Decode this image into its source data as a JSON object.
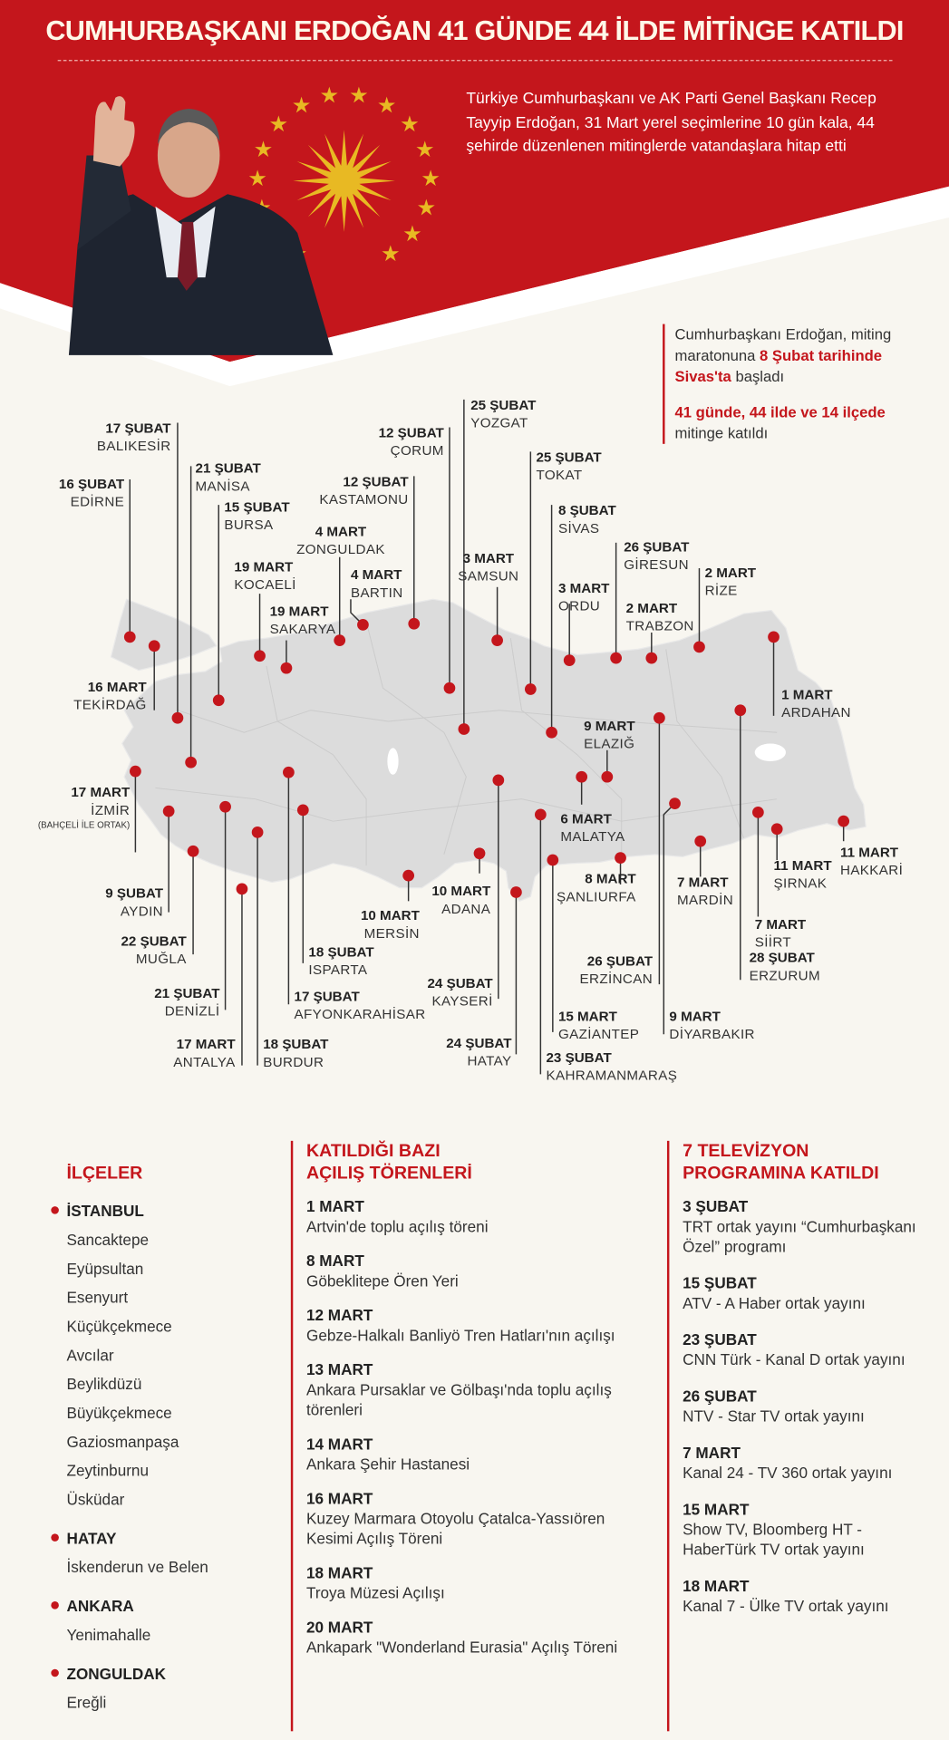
{
  "header": {
    "title": "CUMHURBAŞKANI ERDOĞAN 41 GÜNDE 44 İLDE MİTİNGE KATILDI",
    "intro": "Türkiye Cumhurbaşkanı ve AK Parti Genel Başkanı Recep Tayyip Erdoğan, 31 Mart yerel seçimlerine 10 gün kala, 44 şehirde düzenlenen mitinglerde vatandaşlara hitap etti"
  },
  "side_note": {
    "p1_a": "Cumhurbaşkanı Erdoğan, miting maratonuna ",
    "p1_b": "8 Şubat tarihinde Sivas'ta",
    "p1_c": " başladı",
    "p2_a": "41 günde, 44 ilde ve 14 ilçede",
    "p2_b": " mitinge katıldı"
  },
  "colors": {
    "red": "#c4161c",
    "map": "#dcdcdc",
    "gold": "#e8b923"
  },
  "pins": [
    {
      "date": "16 ŞUBAT",
      "city": "EDİRNE"
    },
    {
      "date": "16 MART",
      "city": "TEKİRDAĞ"
    },
    {
      "date": "17 ŞUBAT",
      "city": "BALIKESİR"
    },
    {
      "date": "21 ŞUBAT",
      "city": "MANİSA"
    },
    {
      "date": "15 ŞUBAT",
      "city": "BURSA"
    },
    {
      "date": "19 MART",
      "city": "KOCAELİ"
    },
    {
      "date": "19 MART",
      "city": "SAKARYA"
    },
    {
      "date": "4 MART",
      "city": "ZONGULDAK"
    },
    {
      "date": "4 MART",
      "city": "BARTIN"
    },
    {
      "date": "12 ŞUBAT",
      "city": "KASTAMONU"
    },
    {
      "date": "12 ŞUBAT",
      "city": "ÇORUM"
    },
    {
      "date": "25 ŞUBAT",
      "city": "YOZGAT"
    },
    {
      "date": "3 MART",
      "city": "SAMSUN"
    },
    {
      "date": "25 ŞUBAT",
      "city": "TOKAT"
    },
    {
      "date": "8 ŞUBAT",
      "city": "SİVAS"
    },
    {
      "date": "3 MART",
      "city": "ORDU"
    },
    {
      "date": "26 ŞUBAT",
      "city": "GİRESUN"
    },
    {
      "date": "2 MART",
      "city": "TRABZON"
    },
    {
      "date": "2 MART",
      "city": "RİZE"
    },
    {
      "date": "1 MART",
      "city": "ARDAHAN"
    },
    {
      "date": "28 ŞUBAT",
      "city": "ERZURUM"
    },
    {
      "date": "26 ŞUBAT",
      "city": "ERZİNCAN"
    },
    {
      "date": "9 MART",
      "city": "ELAZIĞ"
    },
    {
      "date": "6 MART",
      "city": "MALATYA"
    },
    {
      "date": "9 MART",
      "city": "DİYARBAKIR"
    },
    {
      "date": "7 MART",
      "city": "MARDİN"
    },
    {
      "date": "7 MART",
      "city": "SİİRT"
    },
    {
      "date": "11 MART",
      "city": "ŞIRNAK"
    },
    {
      "date": "11 MART",
      "city": "HAKKARİ"
    },
    {
      "date": "8 MART",
      "city": "ŞANLIURFA"
    },
    {
      "date": "15 MART",
      "city": "GAZİANTEP"
    },
    {
      "date": "23 ŞUBAT",
      "city": "KAHRAMANMARAŞ"
    },
    {
      "date": "24 ŞUBAT",
      "city": "HATAY"
    },
    {
      "date": "24 ŞUBAT",
      "city": "KAYSERİ"
    },
    {
      "date": "10 MART",
      "city": "ADANA"
    },
    {
      "date": "10 MART",
      "city": "MERSİN"
    },
    {
      "date": "18 ŞUBAT",
      "city": "ISPARTA"
    },
    {
      "date": "17 ŞUBAT",
      "city": "AFYONKARAHİSAR"
    },
    {
      "date": "18 ŞUBAT",
      "city": "BURDUR"
    },
    {
      "date": "17 MART",
      "city": "ANTALYA"
    },
    {
      "date": "21 ŞUBAT",
      "city": "DENİZLİ"
    },
    {
      "date": "22 ŞUBAT",
      "city": "MUĞLA"
    },
    {
      "date": "9 ŞUBAT",
      "city": "AYDIN"
    },
    {
      "date": "17 MART",
      "city": "İZMİR",
      "note": "(BAHÇELİ İLE ORTAK)"
    }
  ],
  "districts": {
    "title": "İLÇELER",
    "groups": [
      {
        "name": "İSTANBUL",
        "items": [
          "Sancaktepe",
          "Eyüpsultan",
          "Esenyurt",
          "Küçükçekmece",
          "Avcılar",
          "Beylikdüzü",
          "Büyükçekmece",
          "Gaziosmanpaşa",
          "Zeytinburnu",
          "Üsküdar"
        ]
      },
      {
        "name": "HATAY",
        "items": [
          "İskenderun ve Belen"
        ]
      },
      {
        "name": "ANKARA",
        "items": [
          "Yenimahalle"
        ]
      },
      {
        "name": "ZONGULDAK",
        "items": [
          "Ereğli"
        ]
      }
    ]
  },
  "openings": {
    "title_1": "KATILDIĞI BAZI",
    "title_2": "AÇILIŞ TÖRENLERİ",
    "items": [
      {
        "date": "1 MART",
        "text": "Artvin'de toplu açılış töreni"
      },
      {
        "date": "8 MART",
        "text": "Göbeklitepe Ören Yeri"
      },
      {
        "date": "12 MART",
        "text": "Gebze-Halkalı Banliyö Tren Hatları'nın açılışı"
      },
      {
        "date": "13 MART",
        "text": "Ankara Pursaklar ve Gölbaşı'nda toplu açılış törenleri"
      },
      {
        "date": "14 MART",
        "text": "Ankara Şehir Hastanesi"
      },
      {
        "date": "16 MART",
        "text": "Kuzey Marmara Otoyolu Çatalca-Yassıören Kesimi Açılış Töreni"
      },
      {
        "date": "18 MART",
        "text": "Troya Müzesi Açılışı"
      },
      {
        "date": "20 MART",
        "text": "Ankapark \"Wonderland Eurasia\" Açılış Töreni"
      }
    ]
  },
  "tv": {
    "title_1": "7 TELEVİZYON",
    "title_2": "PROGRAMINA KATILDI",
    "items": [
      {
        "date": "3 ŞUBAT",
        "text": "TRT ortak yayını “Cumhurbaşkanı Özel” programı"
      },
      {
        "date": "15 ŞUBAT",
        "text": "ATV - A Haber ortak yayını"
      },
      {
        "date": "23 ŞUBAT",
        "text": "CNN Türk - Kanal D ortak yayını"
      },
      {
        "date": "26 ŞUBAT",
        "text": "NTV - Star TV ortak yayını"
      },
      {
        "date": "7 MART",
        "text": "Kanal 24 - TV 360 ortak yayını"
      },
      {
        "date": "15 MART",
        "text": "Show TV, Bloomberg HT - HaberTürk TV ortak yayını"
      },
      {
        "date": "18 MART",
        "text": "Kanal 7 - Ülke TV ortak yayını"
      }
    ]
  }
}
